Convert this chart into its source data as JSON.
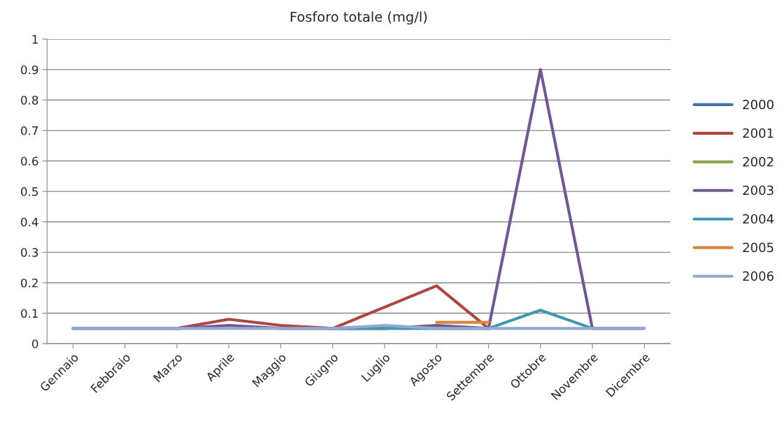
{
  "chart_data": {
    "type": "line",
    "title": "Fosforo totale (mg/l)",
    "categories": [
      "Gennaio",
      "Febbraio",
      "Marzo",
      "Aprile",
      "Maggio",
      "Giugno",
      "Luglio",
      "Agosto",
      "Settembre",
      "Ottobre",
      "Novembre",
      "Dicembre"
    ],
    "series": [
      {
        "name": "2000",
        "color": "#4572a7",
        "values": [
          null,
          null,
          null,
          null,
          null,
          null,
          null,
          null,
          null,
          null,
          null,
          null
        ]
      },
      {
        "name": "2001",
        "color": "#aa4643",
        "values": [
          null,
          null,
          0.05,
          0.08,
          0.06,
          0.05,
          0.12,
          0.19,
          0.05,
          null,
          null,
          null
        ]
      },
      {
        "name": "2002",
        "color": "#89a54e",
        "values": [
          null,
          null,
          null,
          null,
          null,
          null,
          null,
          null,
          null,
          null,
          null,
          null
        ]
      },
      {
        "name": "2003",
        "color": "#71588f",
        "values": [
          0.05,
          0.05,
          0.05,
          0.06,
          0.05,
          0.05,
          0.05,
          0.06,
          0.05,
          0.9,
          0.05,
          0.05
        ]
      },
      {
        "name": "2004",
        "color": "#4198af",
        "values": [
          null,
          null,
          null,
          null,
          null,
          0.05,
          0.05,
          0.05,
          0.05,
          0.11,
          0.05,
          null
        ]
      },
      {
        "name": "2005",
        "color": "#db843d",
        "values": [
          null,
          null,
          null,
          null,
          null,
          null,
          null,
          0.07,
          0.07,
          null,
          null,
          null
        ]
      },
      {
        "name": "2006",
        "color": "#93a9cf",
        "values": [
          0.05,
          0.05,
          0.05,
          0.05,
          0.05,
          0.05,
          0.06,
          0.05,
          0.05,
          0.05,
          0.05,
          0.05
        ]
      }
    ],
    "ylim": [
      0,
      1
    ],
    "yticks": [
      0,
      0.1,
      0.2,
      0.3,
      0.4,
      0.5,
      0.6,
      0.7,
      0.8,
      0.9,
      1
    ],
    "grid": "y",
    "legend": "right",
    "marker": "none",
    "line_style": "solid"
  }
}
